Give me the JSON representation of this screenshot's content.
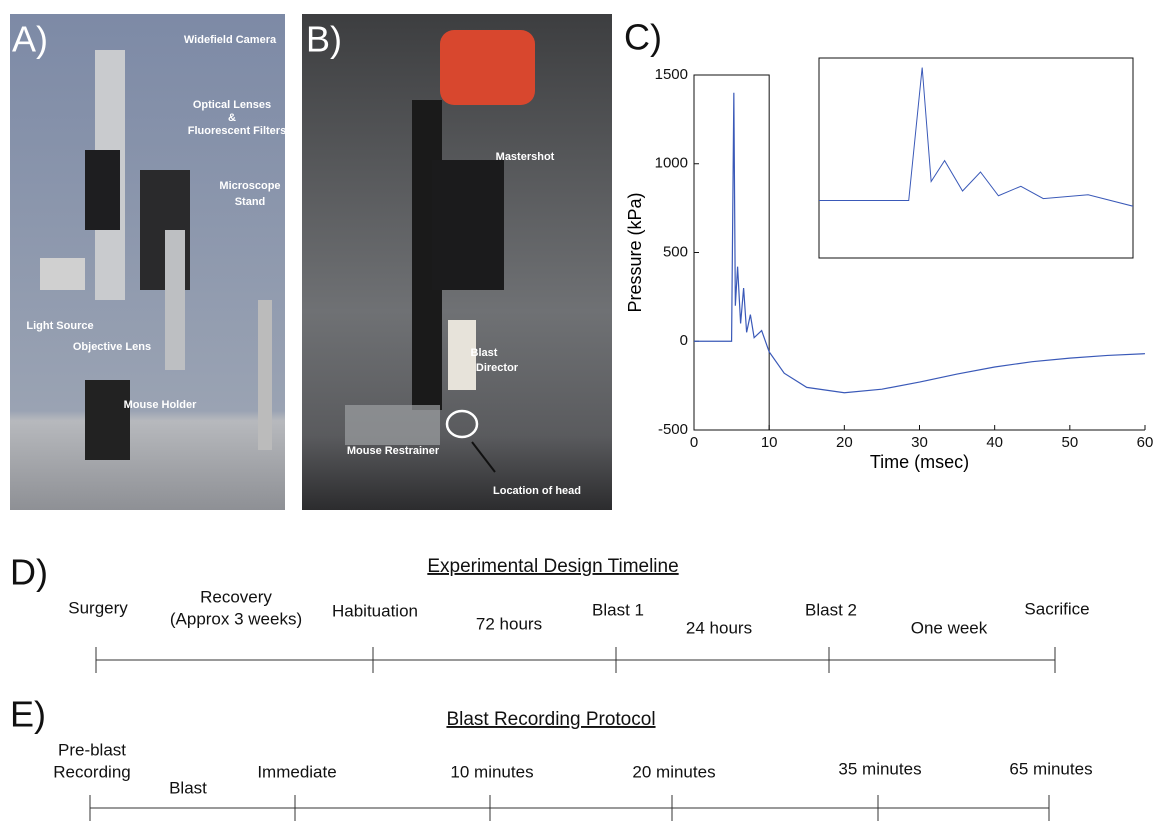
{
  "panel_a": {
    "letter": "A)",
    "labels": [
      "Widefield Camera",
      "Optical Lenses",
      "&",
      "Fluorescent Filters",
      "Microscope",
      "Stand",
      "Light Source",
      "Objective Lens",
      "Mouse Holder"
    ]
  },
  "panel_b": {
    "letter": "B)",
    "labels": [
      "Mastershot",
      "Blast",
      "Director",
      "Mouse Restrainer",
      "Location of head"
    ]
  },
  "chart_data": {
    "type": "line",
    "panel_label": "C)",
    "x_label": "Time (msec)",
    "y_label": "Pressure (kPa)",
    "x": [
      0,
      5,
      5.3,
      5.5,
      5.8,
      6.2,
      6.6,
      7,
      7.5,
      8,
      9,
      10,
      12,
      15,
      20,
      25,
      30,
      35,
      40,
      45,
      50,
      55,
      60
    ],
    "series": [
      {
        "color": "#3a59b8",
        "values": [
          0,
          0,
          1400,
          200,
          420,
          100,
          300,
          50,
          150,
          20,
          60,
          -60,
          -180,
          -260,
          -290,
          -270,
          -230,
          -185,
          -145,
          -115,
          -95,
          -80,
          -70
        ]
      }
    ],
    "xlim": [
      0,
      60
    ],
    "xticks": [
      0,
      10,
      20,
      30,
      40,
      50,
      60
    ],
    "ylim": [
      -500,
      1500
    ],
    "yticks": [
      -500,
      0,
      500,
      1000,
      1500
    ],
    "grid": false
  },
  "timeline_d": {
    "letter": "D)",
    "title": "Experimental Design Timeline",
    "events": [
      [
        "Surgery"
      ],
      [
        "Habituation"
      ],
      [
        "Blast 1"
      ],
      [
        "Blast 2"
      ],
      [
        "Sacrifice"
      ]
    ],
    "intervals": [
      [
        "Recovery",
        "(Approx 3 weeks)"
      ],
      [
        "72 hours"
      ],
      [
        "24 hours"
      ],
      [
        "One week"
      ]
    ]
  },
  "timeline_e": {
    "letter": "E)",
    "title": "Blast Recording Protocol",
    "events": [
      [
        "Pre-blast",
        "Recording"
      ],
      [
        "Immediate"
      ],
      [
        "10 minutes"
      ],
      [
        "20 minutes"
      ],
      [
        "35 minutes"
      ],
      [
        "65 minutes"
      ]
    ],
    "intervals": [
      [
        "Blast"
      ]
    ]
  }
}
